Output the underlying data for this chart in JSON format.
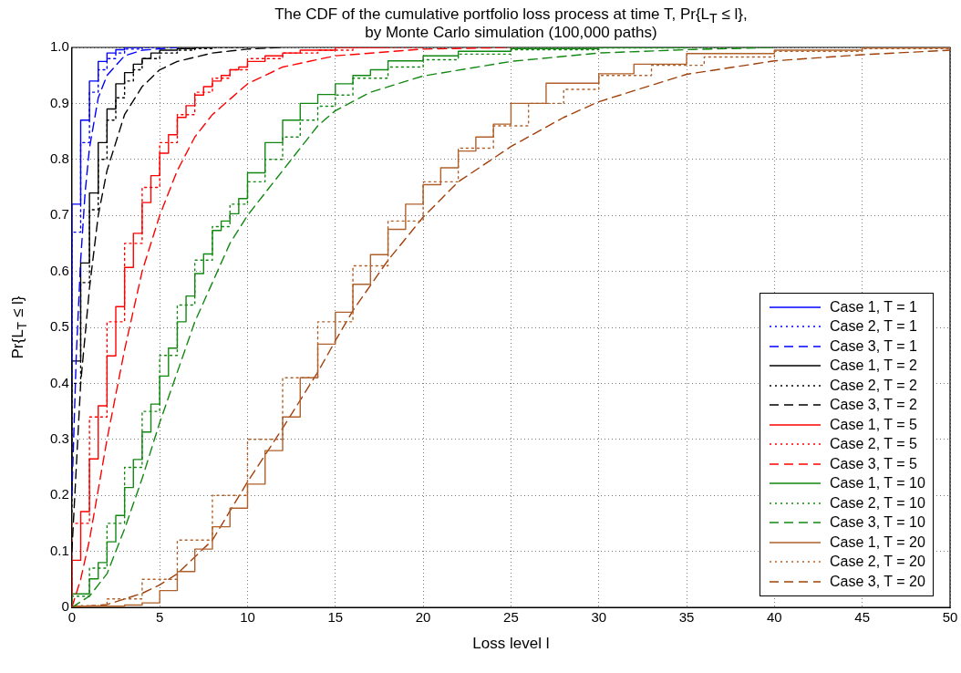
{
  "chart_data": {
    "type": "step",
    "title": "The CDF of the cumulative portfolio loss process at time T, Pr{L$_{T}$ ≤ l},",
    "subtitle": "by Monte Carlo simulation (100,000 paths)",
    "xlabel": "Loss level l",
    "ylabel": "Pr{L$_{T}$ ≤ l}",
    "xlim": [
      0,
      50
    ],
    "xticks": [
      0,
      5,
      10,
      15,
      20,
      25,
      30,
      35,
      40,
      45,
      50
    ],
    "ylim": [
      0,
      1
    ],
    "yticks": [
      0,
      0.1,
      0.2,
      0.3,
      0.4,
      0.5,
      0.6,
      0.7,
      0.8,
      0.9,
      {
        "value": 1,
        "label": "1.0"
      }
    ],
    "grid": true,
    "legend": "bottom right",
    "marker": "none",
    "series": [
      {
        "name": "Case 1, T = 1",
        "line_style": "solid",
        "color": "#0000ff",
        "x": [
          0,
          0.5,
          1,
          1.5,
          2,
          2.5,
          3,
          4
        ],
        "values": [
          0.44,
          0.72,
          0.87,
          0.94,
          0.975,
          0.99,
          0.996,
          1
        ]
      },
      {
        "name": "Case 2, T = 1",
        "line_style": "dotted",
        "color": "#0000ff",
        "x": [
          0,
          0.5,
          1,
          1.5,
          2,
          2.5,
          3,
          4,
          5
        ],
        "values": [
          0.4,
          0.67,
          0.83,
          0.92,
          0.96,
          0.98,
          0.99,
          0.997,
          1
        ]
      },
      {
        "name": "Case 3, T = 1",
        "type": "line",
        "line_style": "dashed",
        "color": "#0000ff",
        "x": [
          0,
          0.25,
          0.5,
          0.75,
          1,
          1.5,
          2,
          3,
          4,
          6
        ],
        "values": [
          0.2,
          0.45,
          0.62,
          0.74,
          0.82,
          0.91,
          0.95,
          0.985,
          0.995,
          1
        ]
      },
      {
        "name": "Case 1, T = 2",
        "line_style": "solid",
        "color": "#000000",
        "x": [
          0,
          0.5,
          1,
          1.5,
          2,
          2.5,
          3,
          3.5,
          4,
          4.5,
          5,
          6,
          7,
          8
        ],
        "values": [
          0.21,
          0.44,
          0.615,
          0.74,
          0.83,
          0.89,
          0.935,
          0.955,
          0.97,
          0.98,
          0.99,
          0.995,
          0.998,
          1
        ]
      },
      {
        "name": "Case 2, T = 2",
        "line_style": "dotted",
        "color": "#000000",
        "x": [
          0,
          0.5,
          1,
          1.5,
          2,
          2.5,
          3,
          3.5,
          4,
          5,
          6,
          7,
          8,
          10
        ],
        "values": [
          0.17,
          0.4,
          0.58,
          0.71,
          0.8,
          0.87,
          0.91,
          0.94,
          0.96,
          0.98,
          0.99,
          0.995,
          0.998,
          1
        ]
      },
      {
        "name": "Case 3, T = 2",
        "type": "line",
        "line_style": "dashed",
        "color": "#000000",
        "x": [
          0,
          0.5,
          1,
          1.5,
          2,
          3,
          4,
          5,
          6,
          8,
          10,
          12
        ],
        "values": [
          0.1,
          0.4,
          0.57,
          0.7,
          0.78,
          0.88,
          0.93,
          0.96,
          0.975,
          0.99,
          0.997,
          1
        ]
      },
      {
        "name": "Case 1, T = 5",
        "line_style": "solid",
        "color": "#ff0000",
        "x": [
          0,
          0.5,
          1,
          1.5,
          2,
          2.5,
          3,
          3.5,
          4,
          4.5,
          5,
          5.5,
          6,
          6.5,
          7,
          7.5,
          8,
          8.5,
          9,
          9.5,
          10,
          11,
          12,
          13,
          15,
          18
        ],
        "values": [
          0.024,
          0.084,
          0.171,
          0.265,
          0.36,
          0.449,
          0.537,
          0.607,
          0.668,
          0.723,
          0.771,
          0.811,
          0.844,
          0.875,
          0.896,
          0.915,
          0.93,
          0.94,
          0.95,
          0.96,
          0.965,
          0.975,
          0.985,
          0.99,
          0.995,
          1
        ]
      },
      {
        "name": "Case 2, T = 5",
        "line_style": "dotted",
        "color": "#ff0000",
        "x": [
          0,
          1,
          2,
          3,
          4,
          5,
          6,
          7,
          8,
          9,
          10,
          12,
          14,
          16,
          20
        ],
        "values": [
          0.02,
          0.15,
          0.34,
          0.51,
          0.65,
          0.75,
          0.83,
          0.88,
          0.92,
          0.945,
          0.96,
          0.98,
          0.99,
          0.995,
          1
        ]
      },
      {
        "name": "Case 3, T = 5",
        "type": "line",
        "line_style": "dashed",
        "color": "#ff0000",
        "x": [
          0,
          0.5,
          1,
          2,
          3,
          4,
          5,
          6,
          7,
          8,
          10,
          12,
          15,
          20,
          25
        ],
        "values": [
          0,
          0.05,
          0.12,
          0.3,
          0.46,
          0.6,
          0.7,
          0.78,
          0.84,
          0.88,
          0.935,
          0.965,
          0.985,
          0.997,
          1
        ]
      },
      {
        "name": "Case 1, T = 10",
        "line_style": "solid",
        "color": "#118811",
        "x": [
          0,
          1,
          1.5,
          2,
          2.5,
          3,
          3.5,
          4,
          4.5,
          5,
          5.5,
          6,
          6.5,
          7,
          7.5,
          8,
          8.5,
          9,
          9.5,
          10,
          11,
          12,
          13,
          14,
          15,
          16,
          17,
          18,
          20,
          22,
          25,
          30,
          35
        ],
        "values": [
          0,
          0.024,
          0.051,
          0.08,
          0.117,
          0.164,
          0.214,
          0.264,
          0.313,
          0.363,
          0.413,
          0.463,
          0.51,
          0.556,
          0.596,
          0.631,
          0.673,
          0.69,
          0.703,
          0.73,
          0.776,
          0.83,
          0.87,
          0.9,
          0.916,
          0.935,
          0.95,
          0.96,
          0.976,
          0.985,
          0.993,
          0.998,
          1
        ]
      },
      {
        "name": "Case 2, T = 10",
        "line_style": "dotted",
        "color": "#118811",
        "x": [
          0,
          1,
          2,
          3,
          4,
          5,
          6,
          7,
          8,
          9,
          10,
          11,
          12,
          13,
          14,
          15,
          16,
          18,
          20,
          22,
          25,
          30,
          35,
          40
        ],
        "values": [
          0,
          0.02,
          0.07,
          0.15,
          0.25,
          0.35,
          0.45,
          0.54,
          0.62,
          0.68,
          0.72,
          0.76,
          0.8,
          0.84,
          0.87,
          0.895,
          0.915,
          0.945,
          0.965,
          0.978,
          0.988,
          0.996,
          0.999,
          1
        ]
      },
      {
        "name": "Case 3, T = 10",
        "type": "line",
        "line_style": "dashed",
        "color": "#118811",
        "x": [
          0,
          1,
          2,
          3,
          4,
          5,
          6,
          7,
          8,
          9,
          10,
          12,
          14,
          15,
          17,
          20,
          25,
          30,
          35,
          40
        ],
        "values": [
          0,
          0.02,
          0.06,
          0.14,
          0.23,
          0.33,
          0.42,
          0.51,
          0.58,
          0.65,
          0.7,
          0.78,
          0.86,
          0.887,
          0.92,
          0.949,
          0.975,
          0.99,
          0.996,
          1
        ]
      },
      {
        "name": "Case 1, T = 20",
        "line_style": "solid",
        "color": "#b0602a",
        "x": [
          0,
          3,
          4,
          5,
          6,
          7,
          8,
          9,
          10,
          11,
          12,
          13,
          14,
          15,
          16,
          17,
          18,
          19,
          20,
          21,
          22,
          23,
          24,
          25,
          27,
          30,
          32,
          35,
          40,
          45,
          50
        ],
        "values": [
          0,
          0.002,
          0.004,
          0.008,
          0.03,
          0.064,
          0.104,
          0.144,
          0.177,
          0.22,
          0.28,
          0.34,
          0.41,
          0.47,
          0.527,
          0.577,
          0.63,
          0.675,
          0.72,
          0.755,
          0.785,
          0.815,
          0.84,
          0.863,
          0.9,
          0.936,
          0.953,
          0.97,
          0.989,
          0.995,
          0.999
        ]
      },
      {
        "name": "Case 2, T = 20",
        "line_style": "dotted",
        "color": "#b0602a",
        "x": [
          0,
          2,
          4,
          6,
          8,
          10,
          12,
          14,
          16,
          18,
          20,
          22,
          24,
          26,
          28,
          30,
          33,
          36,
          40,
          45,
          50
        ],
        "values": [
          0,
          0.003,
          0.015,
          0.05,
          0.12,
          0.2,
          0.3,
          0.41,
          0.51,
          0.61,
          0.69,
          0.76,
          0.82,
          0.86,
          0.9,
          0.925,
          0.95,
          0.968,
          0.983,
          0.993,
          0.998
        ]
      },
      {
        "name": "Case 3, T = 20",
        "type": "line",
        "line_style": "dashed",
        "color": "#a0400a",
        "x": [
          0,
          2,
          4,
          5,
          6,
          8,
          10,
          12,
          14,
          15,
          16,
          18,
          20,
          22,
          25,
          28,
          30,
          35,
          40,
          45,
          50
        ],
        "values": [
          0,
          0.005,
          0.025,
          0.04,
          0.06,
          0.12,
          0.224,
          0.32,
          0.42,
          0.476,
          0.53,
          0.62,
          0.697,
          0.76,
          0.823,
          0.875,
          0.903,
          0.952,
          0.976,
          0.987,
          0.995
        ]
      }
    ]
  }
}
